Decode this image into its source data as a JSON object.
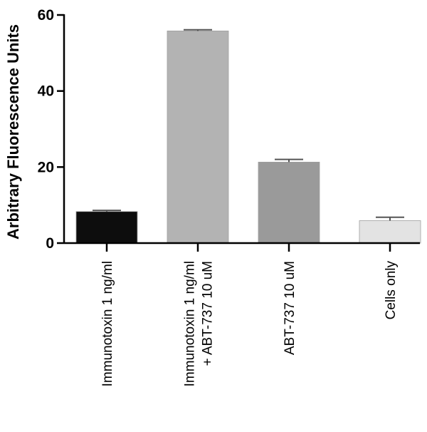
{
  "chart_data": {
    "type": "bar",
    "ylabel": "Arbitrary Fluorescence Units",
    "xlabel": "",
    "ylim": [
      0,
      60
    ],
    "yticks": [
      0,
      20,
      40,
      60
    ],
    "categories": [
      [
        "Immunotoxin 1 ng/ml"
      ],
      [
        "Immunotoxin 1 ng/ml",
        "+ ABT-737 10 uM"
      ],
      [
        "ABT-737 10 uM"
      ],
      [
        "Cells only"
      ]
    ],
    "values": [
      8.3,
      55.8,
      21.3,
      5.9
    ],
    "errors": [
      0.3,
      0.3,
      0.7,
      0.9
    ],
    "colors": [
      "#0d0d0d",
      "#b3b3b3",
      "#9a9a9a",
      "#e3e3e3"
    ],
    "legend": "none",
    "grid": false
  }
}
